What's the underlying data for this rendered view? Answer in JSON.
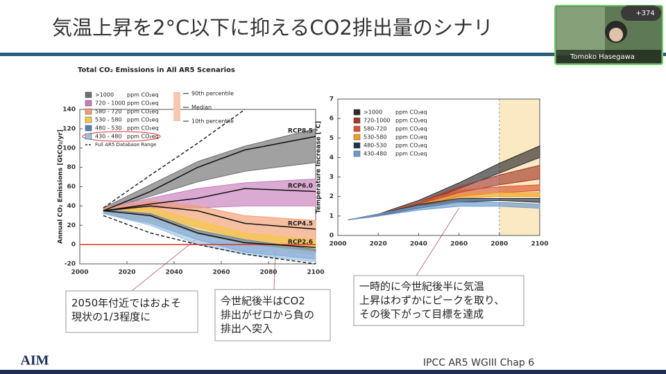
{
  "slide": {
    "title": "気温上昇を2°C以下に抑えるCO2排出量のシナリ",
    "callouts": [
      [
        "2050年付近ではおよそ",
        "現状の1/3程度に"
      ],
      [
        "今世紀後半はCO2",
        "排出がゼロから負の",
        "排出へ突入"
      ],
      [
        "一時的に今世紀後半に気温",
        "上昇はわずかにピークを取り、",
        "その後下がって目標を達成"
      ]
    ],
    "footer": "IPCC AR5 WGIII Chap 6",
    "logo": "AIM"
  },
  "video": {
    "name": "Tomoko Hasegawa",
    "participants": "+374"
  },
  "chart_data": [
    {
      "type": "band",
      "title": "Total CO₂ Emissions in All AR5 Scenarios",
      "y_label": "Annual CO₂ Emissions [GtCO₂/yr]",
      "unit": "ppm CO₂eq",
      "x": [
        2010,
        2030,
        2050,
        2070,
        2100
      ],
      "xlim": [
        2000,
        2100
      ],
      "xticks": [
        2000,
        2020,
        2040,
        2060,
        2080,
        2100
      ],
      "ylim": [
        -20,
        140
      ],
      "yticks": [
        -20,
        0,
        20,
        40,
        60,
        80,
        100,
        120,
        140
      ],
      "reference_line": 0,
      "reference_color": "#d9332b",
      "series": [
        {
          "name": ">1000",
          "color": "#6e6e6e",
          "lower": [
            36,
            50,
            65,
            76,
            85
          ],
          "upper": [
            38,
            62,
            86,
            102,
            120
          ]
        },
        {
          "name": "720 - 1000",
          "color": "#c77cba",
          "lower": [
            34,
            38,
            38,
            40,
            40
          ],
          "upper": [
            38,
            48,
            58,
            64,
            68
          ]
        },
        {
          "name": "580 - 720",
          "color": "#f29d6e",
          "lower": [
            33,
            30,
            18,
            5,
            -5
          ],
          "upper": [
            38,
            45,
            40,
            30,
            25
          ]
        },
        {
          "name": "530 - 580",
          "color": "#f5c842",
          "lower": [
            32,
            25,
            10,
            0,
            -10
          ],
          "upper": [
            36,
            38,
            25,
            12,
            5
          ]
        },
        {
          "name": "480 - 530",
          "color": "#5a7fb0",
          "lower": [
            32,
            22,
            5,
            -8,
            -15
          ],
          "upper": [
            36,
            32,
            15,
            5,
            -5
          ]
        },
        {
          "name": "430 - 480",
          "color": "#9cc2e6",
          "lower": [
            32,
            20,
            0,
            -10,
            -18
          ],
          "upper": [
            35,
            28,
            10,
            0,
            -8
          ]
        }
      ],
      "lines": [
        {
          "name": "RCP8.5",
          "values": [
            35,
            55,
            80,
            98,
            112
          ]
        },
        {
          "name": "RCP6.0",
          "values": [
            35,
            42,
            48,
            58,
            55
          ]
        },
        {
          "name": "RCP4.5",
          "values": [
            35,
            40,
            35,
            22,
            16
          ]
        },
        {
          "name": "RCP2.6",
          "values": [
            35,
            30,
            12,
            2,
            -3
          ]
        }
      ],
      "range": {
        "name": "Full AR5 Database Range",
        "lower": [
          30,
          12,
          0,
          -10,
          -20
        ],
        "upper": [
          38,
          72,
          105,
          140,
          null
        ]
      },
      "percentile_legend": [
        "90th percentile",
        "Median",
        "10th percentile"
      ]
    },
    {
      "type": "band",
      "y_label": "Temperature Increase [°C]",
      "unit": "ppm CO₂eq",
      "x": [
        2005,
        2020,
        2040,
        2060,
        2080,
        2100
      ],
      "xlim": [
        2000,
        2100
      ],
      "xticks": [
        2000,
        2020,
        2040,
        2060,
        2080,
        2100
      ],
      "ylim": [
        0,
        7
      ],
      "yticks": [
        0,
        1,
        2,
        3,
        4,
        5,
        6,
        7
      ],
      "highlight_range": [
        2080,
        2100
      ],
      "highlight_color": "#fbe9c4",
      "series": [
        {
          "name": ">1000",
          "color": "#2a2a2a",
          "lower": [
            0.8,
            1.0,
            1.6,
            2.4,
            3.2,
            4.0
          ],
          "upper": [
            0.8,
            1.1,
            1.8,
            2.7,
            3.7,
            4.6
          ]
        },
        {
          "name": "720-1000",
          "color": "#a33a2a",
          "lower": [
            0.8,
            1.0,
            1.6,
            2.2,
            2.6,
            2.9
          ],
          "upper": [
            0.8,
            1.1,
            1.7,
            2.5,
            3.1,
            3.6
          ]
        },
        {
          "name": "580-720",
          "color": "#d9542a",
          "lower": [
            0.8,
            1.0,
            1.5,
            2.0,
            2.2,
            2.3
          ],
          "upper": [
            0.8,
            1.1,
            1.7,
            2.3,
            2.5,
            2.6
          ]
        },
        {
          "name": "530-580",
          "color": "#f0a020",
          "lower": [
            0.8,
            1.0,
            1.5,
            1.9,
            2.0,
            2.0
          ],
          "upper": [
            0.8,
            1.1,
            1.6,
            2.1,
            2.2,
            2.2
          ]
        },
        {
          "name": "480-530",
          "color": "#1f3550",
          "lower": [
            0.8,
            1.0,
            1.4,
            1.7,
            1.8,
            1.7
          ],
          "upper": [
            0.8,
            1.1,
            1.6,
            1.9,
            1.9,
            1.9
          ]
        },
        {
          "name": "430-480",
          "color": "#6a9ad0",
          "lower": [
            0.8,
            1.0,
            1.3,
            1.5,
            1.5,
            1.4
          ],
          "upper": [
            0.8,
            1.1,
            1.5,
            1.7,
            1.7,
            1.6
          ]
        }
      ]
    }
  ]
}
